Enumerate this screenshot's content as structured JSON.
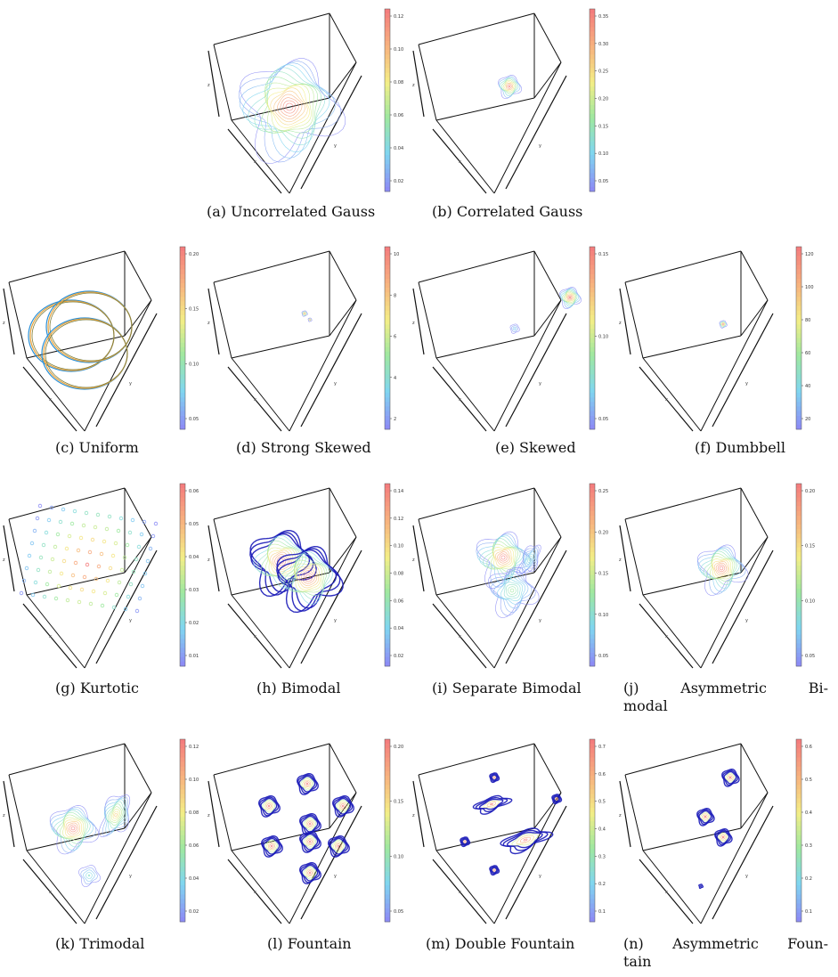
{
  "figure": {
    "axis_label_x": "x",
    "axis_label_y": "y",
    "axis_label_z": "z",
    "panels": [
      {
        "id": "a",
        "caption": "(a) Uncorrelated Gauss",
        "pattern": "gauss",
        "ticks": [
          "0.02",
          "0.04",
          "0.06",
          "0.08",
          "0.10",
          "0.12"
        ]
      },
      {
        "id": "b",
        "caption": "(b) Correlated Gauss",
        "pattern": "small",
        "ticks": [
          "0.05",
          "0.10",
          "0.15",
          "0.20",
          "0.25",
          "0.30",
          "0.35"
        ]
      },
      {
        "id": "c",
        "caption": "(c) Uniform",
        "pattern": "uniform",
        "ticks": [
          "0.05",
          "0.10",
          "0.15",
          "0.20"
        ]
      },
      {
        "id": "d",
        "caption": "(d) Strong Skewed",
        "pattern": "strong",
        "ticks": [
          "2",
          "4",
          "6",
          "8",
          "10"
        ]
      },
      {
        "id": "e",
        "caption": "(e) Skewed",
        "pattern": "skewed",
        "ticks": [
          "0.05",
          "0.10",
          "0.15"
        ]
      },
      {
        "id": "f",
        "caption": "(f) Dumbbell",
        "pattern": "dumb",
        "ticks": [
          "20",
          "40",
          "60",
          "80",
          "100",
          "120"
        ]
      },
      {
        "id": "g",
        "caption": "(g) Kurtotic",
        "pattern": "kurt",
        "ticks": [
          "0.01",
          "0.02",
          "0.03",
          "0.04",
          "0.05",
          "0.06"
        ]
      },
      {
        "id": "h",
        "caption": "(h) Bimodal",
        "pattern": "bimodal",
        "ticks": [
          "0.02",
          "0.04",
          "0.06",
          "0.08",
          "0.10",
          "0.12",
          "0.14"
        ]
      },
      {
        "id": "i",
        "caption": "(i) Separate Bimodal",
        "pattern": "sepbi",
        "ticks": [
          "0.05",
          "0.10",
          "0.15",
          "0.20",
          "0.25"
        ]
      },
      {
        "id": "j",
        "caption_line1_words": [
          "(j)",
          "Asymmetric",
          "Bi-"
        ],
        "caption_line2": "modal",
        "pattern": "asymbi",
        "ticks": [
          "0.05",
          "0.10",
          "0.15",
          "0.20"
        ]
      },
      {
        "id": "k",
        "caption": "(k) Trimodal",
        "pattern": "trimodal",
        "ticks": [
          "0.02",
          "0.04",
          "0.06",
          "0.08",
          "0.10",
          "0.12"
        ]
      },
      {
        "id": "l",
        "caption": "(l) Fountain",
        "pattern": "fountain",
        "ticks": [
          "0.05",
          "0.10",
          "0.15",
          "0.20"
        ]
      },
      {
        "id": "m",
        "caption": "(m) Double Fountain",
        "pattern": "dfountain",
        "ticks": [
          "0.1",
          "0.2",
          "0.3",
          "0.4",
          "0.5",
          "0.6",
          "0.7"
        ]
      },
      {
        "id": "n",
        "caption_line1_words": [
          "(n)",
          "Asymmetric",
          "Foun-"
        ],
        "caption_line2": "tain",
        "pattern": "afountain",
        "ticks": [
          "0.1",
          "0.2",
          "0.3",
          "0.4",
          "0.5",
          "0.6"
        ]
      }
    ]
  }
}
